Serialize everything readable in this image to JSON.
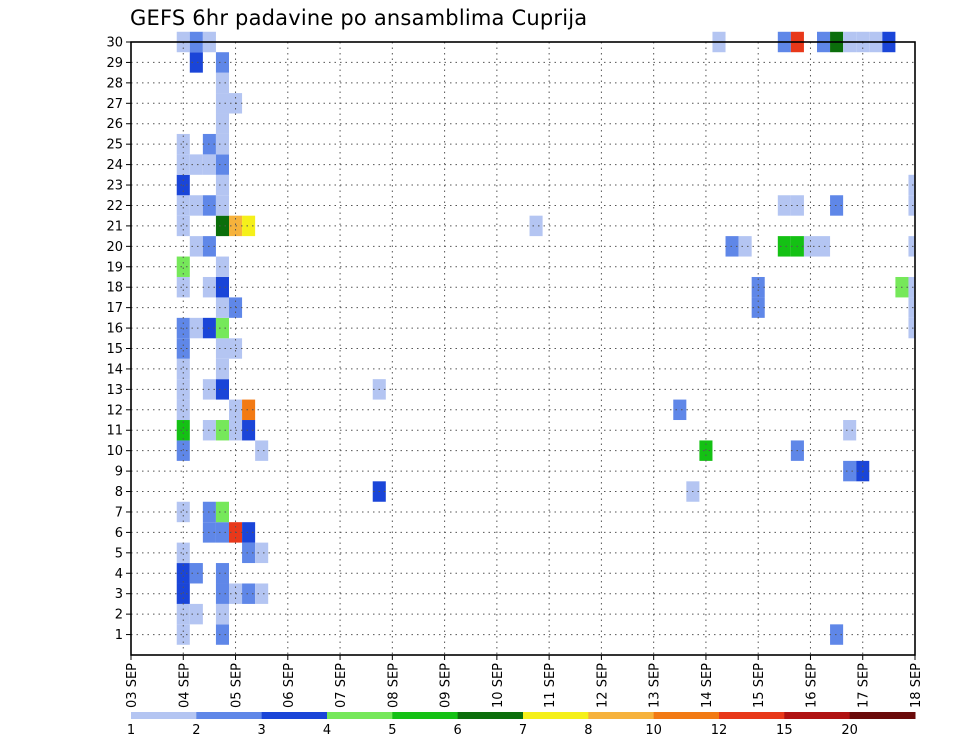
{
  "chart_data": {
    "type": "heatmap",
    "title": "GEFS 6hr padavine po ansamblima Cuprija",
    "x_ticks": [
      "03 SEP",
      "04 SEP",
      "05 SEP",
      "06 SEP",
      "07 SEP",
      "08 SEP",
      "09 SEP",
      "10 SEP",
      "11 SEP",
      "12 SEP",
      "13 SEP",
      "14 SEP",
      "15 SEP",
      "16 SEP",
      "17 SEP",
      "18 SEP"
    ],
    "y_ticks": [
      1,
      2,
      3,
      4,
      5,
      6,
      7,
      8,
      9,
      10,
      11,
      12,
      13,
      14,
      15,
      16,
      17,
      18,
      19,
      20,
      21,
      22,
      23,
      24,
      25,
      26,
      27,
      28,
      29,
      30
    ],
    "xlim": [
      "03 SEP 00h",
      "18 SEP 00h"
    ],
    "ylim": [
      0,
      30
    ],
    "time_step_hours": 6,
    "grid": true,
    "colorbar": {
      "labels": [
        "1",
        "2",
        "3",
        "4",
        "5",
        "6",
        "7",
        "8",
        "10",
        "12",
        "15",
        "20"
      ],
      "colors": [
        "#b4c5f2",
        "#5f87e8",
        "#1a45d8",
        "#76e85a",
        "#14c114",
        "#0b6e0b",
        "#f5f01a",
        "#f6b23c",
        "#f27a14",
        "#e8381a",
        "#b01212",
        "#6a0a0a"
      ]
    },
    "cells": [
      {
        "m": 1,
        "t": "04 SEP 00h",
        "v": 1.5
      },
      {
        "m": 1,
        "t": "04 SEP 18h",
        "v": 2.5
      },
      {
        "m": 1,
        "t": "16 SEP 12h",
        "v": 2.5
      },
      {
        "m": 2,
        "t": "04 SEP 00h",
        "v": 1.5
      },
      {
        "m": 2,
        "t": "04 SEP 06h",
        "v": 1.5
      },
      {
        "m": 2,
        "t": "04 SEP 18h",
        "v": 1.5
      },
      {
        "m": 3,
        "t": "04 SEP 00h",
        "v": 3.5
      },
      {
        "m": 3,
        "t": "04 SEP 18h",
        "v": 2.5
      },
      {
        "m": 3,
        "t": "05 SEP 00h",
        "v": 1.5
      },
      {
        "m": 3,
        "t": "05 SEP 06h",
        "v": 2.5
      },
      {
        "m": 3,
        "t": "05 SEP 12h",
        "v": 1.5
      },
      {
        "m": 4,
        "t": "04 SEP 00h",
        "v": 3.5
      },
      {
        "m": 4,
        "t": "04 SEP 06h",
        "v": 2.5
      },
      {
        "m": 4,
        "t": "04 SEP 18h",
        "v": 2.5
      },
      {
        "m": 5,
        "t": "04 SEP 00h",
        "v": 1.5
      },
      {
        "m": 5,
        "t": "05 SEP 06h",
        "v": 2.5
      },
      {
        "m": 5,
        "t": "05 SEP 12h",
        "v": 1.5
      },
      {
        "m": 6,
        "t": "04 SEP 12h",
        "v": 2.5
      },
      {
        "m": 6,
        "t": "04 SEP 18h",
        "v": 2.5
      },
      {
        "m": 6,
        "t": "05 SEP 00h",
        "v": 13.5
      },
      {
        "m": 6,
        "t": "05 SEP 06h",
        "v": 3.5
      },
      {
        "m": 7,
        "t": "04 SEP 00h",
        "v": 1.5
      },
      {
        "m": 7,
        "t": "04 SEP 12h",
        "v": 2.5
      },
      {
        "m": 7,
        "t": "04 SEP 18h",
        "v": 4.5
      },
      {
        "m": 8,
        "t": "07 SEP 18h",
        "v": 3.5
      },
      {
        "m": 8,
        "t": "13 SEP 18h",
        "v": 1.5
      },
      {
        "m": 9,
        "t": "16 SEP 18h",
        "v": 2.5
      },
      {
        "m": 9,
        "t": "17 SEP 00h",
        "v": 3.5
      },
      {
        "m": 10,
        "t": "04 SEP 00h",
        "v": 2.5
      },
      {
        "m": 10,
        "t": "05 SEP 12h",
        "v": 1.5
      },
      {
        "m": 10,
        "t": "14 SEP 00h",
        "v": 5.5
      },
      {
        "m": 10,
        "t": "15 SEP 18h",
        "v": 2.5
      },
      {
        "m": 11,
        "t": "04 SEP 00h",
        "v": 5.5
      },
      {
        "m": 11,
        "t": "04 SEP 12h",
        "v": 1.5
      },
      {
        "m": 11,
        "t": "04 SEP 18h",
        "v": 4.5
      },
      {
        "m": 11,
        "t": "05 SEP 00h",
        "v": 1.5
      },
      {
        "m": 11,
        "t": "05 SEP 06h",
        "v": 3.5
      },
      {
        "m": 11,
        "t": "16 SEP 18h",
        "v": 1.5
      },
      {
        "m": 12,
        "t": "04 SEP 00h",
        "v": 1.5
      },
      {
        "m": 12,
        "t": "05 SEP 00h",
        "v": 1.5
      },
      {
        "m": 12,
        "t": "05 SEP 06h",
        "v": 11
      },
      {
        "m": 12,
        "t": "13 SEP 12h",
        "v": 2.5
      },
      {
        "m": 13,
        "t": "04 SEP 00h",
        "v": 1.5
      },
      {
        "m": 13,
        "t": "04 SEP 12h",
        "v": 1.5
      },
      {
        "m": 13,
        "t": "04 SEP 18h",
        "v": 3.5
      },
      {
        "m": 13,
        "t": "07 SEP 18h",
        "v": 1.5
      },
      {
        "m": 14,
        "t": "04 SEP 00h",
        "v": 1.5
      },
      {
        "m": 14,
        "t": "04 SEP 18h",
        "v": 1.5
      },
      {
        "m": 15,
        "t": "04 SEP 00h",
        "v": 2.5
      },
      {
        "m": 15,
        "t": "04 SEP 18h",
        "v": 1.5
      },
      {
        "m": 15,
        "t": "05 SEP 00h",
        "v": 1.5
      },
      {
        "m": 16,
        "t": "04 SEP 00h",
        "v": 2.5
      },
      {
        "m": 16,
        "t": "04 SEP 06h",
        "v": 1.5
      },
      {
        "m": 16,
        "t": "04 SEP 12h",
        "v": 3.5
      },
      {
        "m": 16,
        "t": "04 SEP 18h",
        "v": 4.5
      },
      {
        "m": 16,
        "t": "18 SEP 00h",
        "v": 1.5
      },
      {
        "m": 17,
        "t": "04 SEP 18h",
        "v": 1.5
      },
      {
        "m": 17,
        "t": "05 SEP 00h",
        "v": 2.5
      },
      {
        "m": 17,
        "t": "15 SEP 00h",
        "v": 2.5
      },
      {
        "m": 17,
        "t": "18 SEP 00h",
        "v": 1.5
      },
      {
        "m": 18,
        "t": "04 SEP 00h",
        "v": 1.5
      },
      {
        "m": 18,
        "t": "04 SEP 12h",
        "v": 1.5
      },
      {
        "m": 18,
        "t": "04 SEP 18h",
        "v": 3.5
      },
      {
        "m": 18,
        "t": "15 SEP 00h",
        "v": 2.5
      },
      {
        "m": 18,
        "t": "17 SEP 18h",
        "v": 4.5
      },
      {
        "m": 18,
        "t": "18 SEP 00h",
        "v": 1.5
      },
      {
        "m": 19,
        "t": "04 SEP 00h",
        "v": 4.5
      },
      {
        "m": 19,
        "t": "04 SEP 18h",
        "v": 1.5
      },
      {
        "m": 20,
        "t": "04 SEP 06h",
        "v": 1.5
      },
      {
        "m": 20,
        "t": "04 SEP 12h",
        "v": 2.5
      },
      {
        "m": 20,
        "t": "14 SEP 12h",
        "v": 2.5
      },
      {
        "m": 20,
        "t": "14 SEP 18h",
        "v": 1.5
      },
      {
        "m": 20,
        "t": "15 SEP 12h",
        "v": 5.5
      },
      {
        "m": 20,
        "t": "15 SEP 18h",
        "v": 5.5
      },
      {
        "m": 20,
        "t": "16 SEP 00h",
        "v": 1.5
      },
      {
        "m": 20,
        "t": "16 SEP 06h",
        "v": 1.5
      },
      {
        "m": 20,
        "t": "18 SEP 00h",
        "v": 1.5
      },
      {
        "m": 21,
        "t": "04 SEP 00h",
        "v": 1.5
      },
      {
        "m": 21,
        "t": "04 SEP 18h",
        "v": 6.5
      },
      {
        "m": 21,
        "t": "05 SEP 00h",
        "v": 9
      },
      {
        "m": 21,
        "t": "05 SEP 06h",
        "v": 7.5
      },
      {
        "m": 21,
        "t": "10 SEP 18h",
        "v": 1.5
      },
      {
        "m": 22,
        "t": "04 SEP 00h",
        "v": 1.5
      },
      {
        "m": 22,
        "t": "04 SEP 06h",
        "v": 1.5
      },
      {
        "m": 22,
        "t": "04 SEP 12h",
        "v": 2.5
      },
      {
        "m": 22,
        "t": "04 SEP 18h",
        "v": 1.5
      },
      {
        "m": 22,
        "t": "15 SEP 12h",
        "v": 1.5
      },
      {
        "m": 22,
        "t": "15 SEP 18h",
        "v": 1.5
      },
      {
        "m": 22,
        "t": "16 SEP 12h",
        "v": 2.5
      },
      {
        "m": 22,
        "t": "18 SEP 00h",
        "v": 1.5
      },
      {
        "m": 23,
        "t": "04 SEP 00h",
        "v": 3.5
      },
      {
        "m": 23,
        "t": "04 SEP 18h",
        "v": 1.5
      },
      {
        "m": 23,
        "t": "18 SEP 00h",
        "v": 1.5
      },
      {
        "m": 24,
        "t": "04 SEP 00h",
        "v": 1.5
      },
      {
        "m": 24,
        "t": "04 SEP 06h",
        "v": 1.5
      },
      {
        "m": 24,
        "t": "04 SEP 12h",
        "v": 1.5
      },
      {
        "m": 24,
        "t": "04 SEP 18h",
        "v": 2.5
      },
      {
        "m": 25,
        "t": "04 SEP 00h",
        "v": 1.5
      },
      {
        "m": 25,
        "t": "04 SEP 12h",
        "v": 2.5
      },
      {
        "m": 25,
        "t": "04 SEP 18h",
        "v": 1.5
      },
      {
        "m": 26,
        "t": "04 SEP 18h",
        "v": 1.5
      },
      {
        "m": 27,
        "t": "04 SEP 18h",
        "v": 1.5
      },
      {
        "m": 27,
        "t": "05 SEP 00h",
        "v": 1.5
      },
      {
        "m": 28,
        "t": "04 SEP 18h",
        "v": 1.5
      },
      {
        "m": 29,
        "t": "04 SEP 06h",
        "v": 3.5
      },
      {
        "m": 29,
        "t": "04 SEP 18h",
        "v": 2.5
      },
      {
        "m": 30,
        "t": "04 SEP 00h",
        "v": 1.5
      },
      {
        "m": 30,
        "t": "04 SEP 06h",
        "v": 2.5
      },
      {
        "m": 30,
        "t": "04 SEP 12h",
        "v": 1.5
      },
      {
        "m": 30,
        "t": "14 SEP 06h",
        "v": 1.5
      },
      {
        "m": 30,
        "t": "15 SEP 12h",
        "v": 2.5
      },
      {
        "m": 30,
        "t": "15 SEP 18h",
        "v": 13.5
      },
      {
        "m": 30,
        "t": "16 SEP 06h",
        "v": 2.5
      },
      {
        "m": 30,
        "t": "16 SEP 12h",
        "v": 6.5
      },
      {
        "m": 30,
        "t": "16 SEP 18h",
        "v": 1.5
      },
      {
        "m": 30,
        "t": "17 SEP 00h",
        "v": 1.5
      },
      {
        "m": 30,
        "t": "17 SEP 06h",
        "v": 1.5
      },
      {
        "m": 30,
        "t": "17 SEP 12h",
        "v": 3.5
      }
    ]
  }
}
